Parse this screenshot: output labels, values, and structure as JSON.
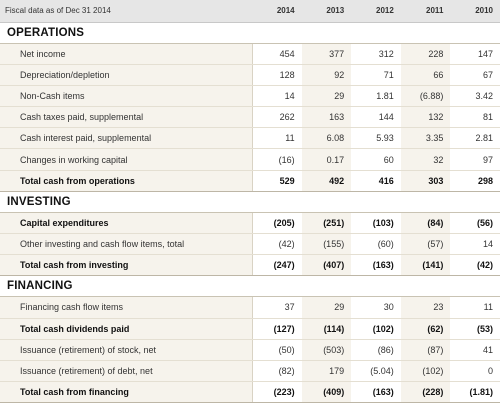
{
  "header": {
    "caption": "Fiscal data as of Dec 31 2014",
    "years": [
      "2014",
      "2013",
      "2012",
      "2011",
      "2010"
    ]
  },
  "sections": [
    {
      "title": "OPERATIONS",
      "rows": [
        {
          "label": "Net income",
          "values": [
            "454",
            "377",
            "312",
            "228",
            "147"
          ],
          "style": "normal"
        },
        {
          "label": "Depreciation/depletion",
          "values": [
            "128",
            "92",
            "71",
            "66",
            "67"
          ],
          "style": "normal"
        },
        {
          "label": "Non-Cash items",
          "values": [
            "14",
            "29",
            "1.81",
            "(6.88)",
            "3.42"
          ],
          "style": "normal"
        },
        {
          "label": "Cash taxes paid, supplemental",
          "values": [
            "262",
            "163",
            "144",
            "132",
            "81"
          ],
          "style": "normal"
        },
        {
          "label": "Cash interest paid, supplemental",
          "values": [
            "11",
            "6.08",
            "5.93",
            "3.35",
            "2.81"
          ],
          "style": "normal"
        },
        {
          "label": "Changes in working capital",
          "values": [
            "(16)",
            "0.17",
            "60",
            "32",
            "97"
          ],
          "style": "normal"
        },
        {
          "label": "Total cash from operations",
          "values": [
            "529",
            "492",
            "416",
            "303",
            "298"
          ],
          "style": "total"
        }
      ]
    },
    {
      "title": "INVESTING",
      "rows": [
        {
          "label": "Capital expenditures",
          "values": [
            "(205)",
            "(251)",
            "(103)",
            "(84)",
            "(56)"
          ],
          "style": "bold"
        },
        {
          "label": "Other investing and cash flow items, total",
          "values": [
            "(42)",
            "(155)",
            "(60)",
            "(57)",
            "14"
          ],
          "style": "normal"
        },
        {
          "label": "Total cash from investing",
          "values": [
            "(247)",
            "(407)",
            "(163)",
            "(141)",
            "(42)"
          ],
          "style": "total"
        }
      ]
    },
    {
      "title": "FINANCING",
      "rows": [
        {
          "label": "Financing cash flow items",
          "values": [
            "37",
            "29",
            "30",
            "23",
            "11"
          ],
          "style": "normal"
        },
        {
          "label": "Total cash dividends paid",
          "values": [
            "(127)",
            "(114)",
            "(102)",
            "(62)",
            "(53)"
          ],
          "style": "bold"
        },
        {
          "label": "Issuance (retirement) of stock, net",
          "values": [
            "(50)",
            "(503)",
            "(86)",
            "(87)",
            "41"
          ],
          "style": "normal"
        },
        {
          "label": "Issuance (retirement) of debt, net",
          "values": [
            "(82)",
            "179",
            "(5.04)",
            "(102)",
            "0"
          ],
          "style": "normal"
        },
        {
          "label": "Total cash from financing",
          "values": [
            "(223)",
            "(409)",
            "(163)",
            "(228)",
            "(1.81)"
          ],
          "style": "total"
        }
      ]
    }
  ]
}
